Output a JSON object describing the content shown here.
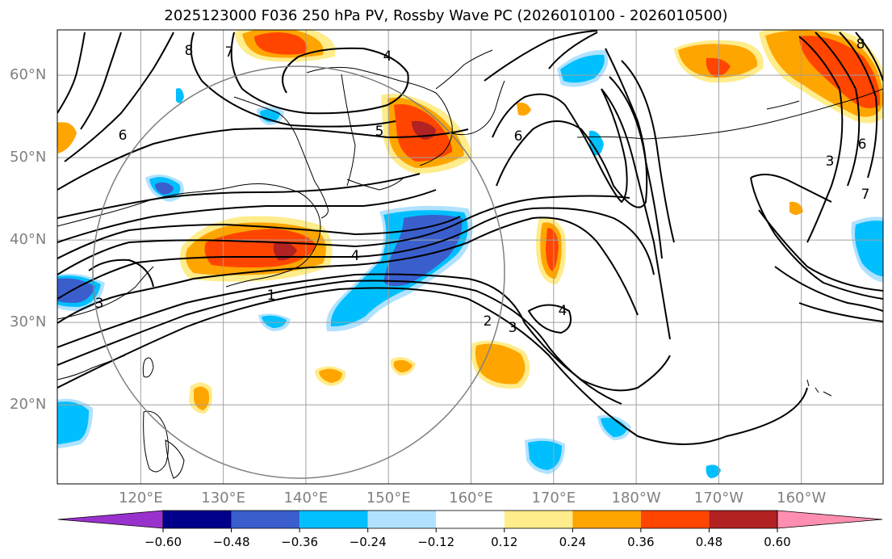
{
  "title": "2025123000 F036 250 hPa PV, Rossby Wave PC (2026010100 - 2026010500)",
  "map": {
    "lat_labels": [
      {
        "text": "60°N",
        "lat": 60
      },
      {
        "text": "50°N",
        "lat": 50
      },
      {
        "text": "40°N",
        "lat": 40
      },
      {
        "text": "30°N",
        "lat": 30
      },
      {
        "text": "20°N",
        "lat": 20
      }
    ],
    "lon_labels": [
      {
        "text": "120°E",
        "lon": 120
      },
      {
        "text": "130°E",
        "lon": 130
      },
      {
        "text": "140°E",
        "lon": 140
      },
      {
        "text": "150°E",
        "lon": 150
      },
      {
        "text": "160°E",
        "lon": 160
      },
      {
        "text": "170°E",
        "lon": 170
      },
      {
        "text": "180°W",
        "lon": 180
      },
      {
        "text": "170°W",
        "lon": 190
      },
      {
        "text": "160°W",
        "lon": 200
      }
    ],
    "contour_labels": [
      "1",
      "2",
      "3",
      "3",
      "3",
      "4",
      "4",
      "4",
      "5",
      "6",
      "6",
      "6",
      "7",
      "7",
      "8",
      "8"
    ],
    "colors": {
      "neg_060": "#9932cc",
      "neg_048": "#00008b",
      "neg_036": "#3a5fcd",
      "neg_024": "#00bfff",
      "neg_012": "#b0e2ff",
      "zero": "#ffffff",
      "pos_012": "#ffec8b",
      "pos_024": "#ffa500",
      "pos_036": "#ff4500",
      "pos_048": "#b22222",
      "pos_060": "#ff8fb0"
    }
  },
  "colorbar": {
    "ticks": [
      "−0.60",
      "−0.48",
      "−0.36",
      "−0.24",
      "−0.12",
      "0.12",
      "0.24",
      "0.36",
      "0.48",
      "0.60"
    ],
    "levels": [
      -0.6,
      -0.48,
      -0.36,
      -0.24,
      -0.12,
      0.12,
      0.24,
      0.36,
      0.48,
      0.6
    ],
    "colors": [
      "#9932cc",
      "#00008b",
      "#3a5fcd",
      "#00bfff",
      "#b0e2ff",
      "#ffffff",
      "#ffec8b",
      "#ffa500",
      "#ff4500",
      "#b22222",
      "#ff8fb0"
    ]
  }
}
